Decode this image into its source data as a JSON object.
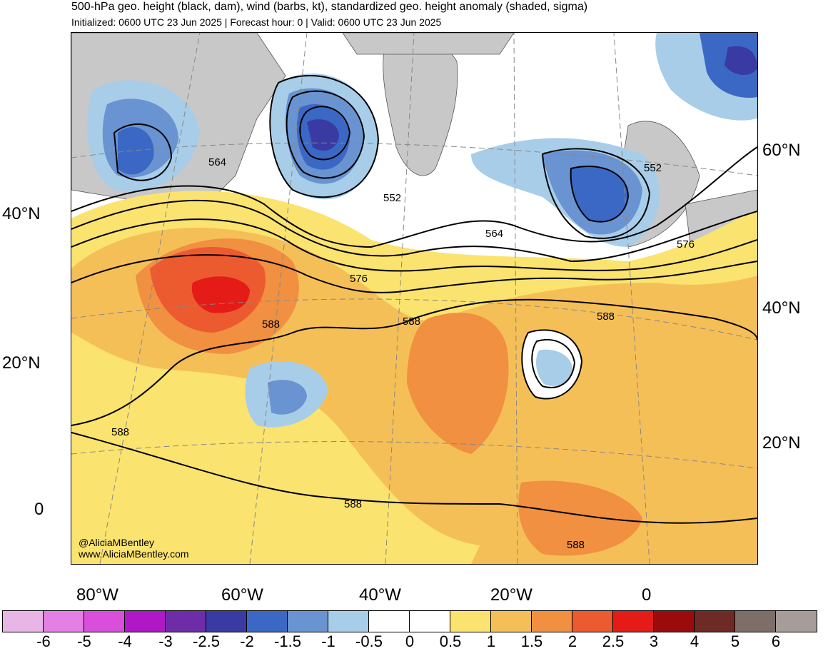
{
  "header": {
    "title": "500-hPa geo. height (black, dam), wind (barbs, kt), standardized geo. height anomaly (shaded, sigma)",
    "subtitle": "Initialized: 0600 UTC 23 Jun 2025 | Forecast hour: 0 | Valid: 0600 UTC 23 Jun 2025"
  },
  "map": {
    "left_lat_labels": [
      "40°N",
      "20°N",
      "0"
    ],
    "right_lat_labels": [
      "60°N",
      "40°N",
      "20°N"
    ],
    "lon_labels": [
      "80°W",
      "60°W",
      "40°W",
      "20°W",
      "0"
    ],
    "contour_labels": [
      "564",
      "552",
      "552",
      "564",
      "576",
      "576",
      "588",
      "588",
      "588",
      "588",
      "588",
      "588"
    ],
    "credits": [
      "@AliciaMBentley",
      "www.AliciaMBentley.com"
    ],
    "colors": {
      "land": "#c8c8c8",
      "ocean_neutral": "#ffffff",
      "contour": "#000000",
      "coastline": "#555555"
    }
  },
  "colorbar": {
    "tick_labels": [
      "-6",
      "-5",
      "-4",
      "-3",
      "-2.5",
      "-2",
      "-1.5",
      "-1",
      "-0.5",
      "0",
      "0.5",
      "1",
      "1.5",
      "2",
      "2.5",
      "3",
      "4",
      "5",
      "6"
    ],
    "colors": [
      "#e8b6e6",
      "#e47fe3",
      "#d94edb",
      "#b017c7",
      "#6e2ca9",
      "#3a3aa3",
      "#3b68c4",
      "#6993d1",
      "#a8cde8",
      "#ffffff",
      "#ffffff",
      "#fbe36f",
      "#f5bf58",
      "#f09040",
      "#ec5b2f",
      "#e51b17",
      "#9c0b0b",
      "#6e2a24",
      "#7e6e6a",
      "#a69c9a"
    ]
  }
}
